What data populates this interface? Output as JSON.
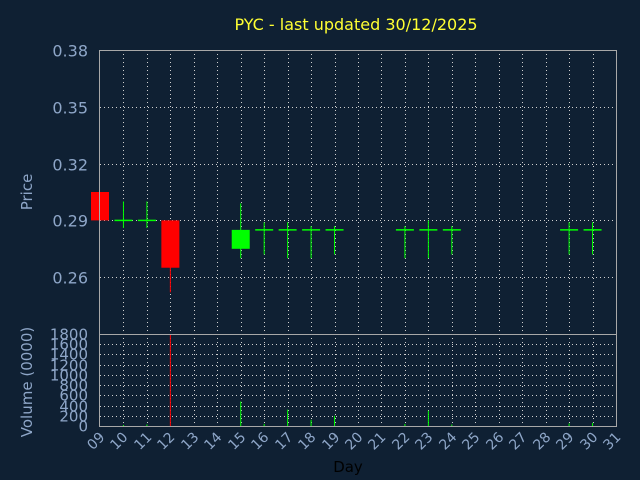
{
  "chart_data": [
    {
      "type": "candlestick",
      "title": "PYC - last updated 30/12/2025",
      "ylabel": "Price",
      "ylim": [
        0.23,
        0.38
      ],
      "yticks": [
        "0.38",
        "0.35",
        "0.32",
        "0.29",
        "0.26"
      ],
      "grid": true,
      "colors": {
        "up": "#00ff00",
        "down": "#ff0000",
        "flat": "#00ff00"
      },
      "x_days": [
        "09",
        "10",
        "11",
        "12",
        "13",
        "14",
        "15",
        "16",
        "17",
        "18",
        "19",
        "20",
        "21",
        "22",
        "23",
        "24",
        "25",
        "26",
        "27",
        "28",
        "29",
        "30",
        "31"
      ],
      "candles": [
        {
          "day": "09",
          "open": 0.305,
          "high": 0.305,
          "low": 0.29,
          "close": 0.29
        },
        {
          "day": "10",
          "open": 0.29,
          "high": 0.3,
          "low": 0.286,
          "close": 0.29
        },
        {
          "day": "11",
          "open": 0.29,
          "high": 0.3,
          "low": 0.286,
          "close": 0.29
        },
        {
          "day": "12",
          "open": 0.29,
          "high": 0.29,
          "low": 0.252,
          "close": 0.265
        },
        {
          "day": "15",
          "open": 0.275,
          "high": 0.299,
          "low": 0.27,
          "close": 0.285
        },
        {
          "day": "16",
          "open": 0.285,
          "high": 0.289,
          "low": 0.272,
          "close": 0.285
        },
        {
          "day": "17",
          "open": 0.285,
          "high": 0.289,
          "low": 0.27,
          "close": 0.285
        },
        {
          "day": "18",
          "open": 0.285,
          "high": 0.287,
          "low": 0.27,
          "close": 0.285
        },
        {
          "day": "19",
          "open": 0.285,
          "high": 0.287,
          "low": 0.272,
          "close": 0.285
        },
        {
          "day": "22",
          "open": 0.285,
          "high": 0.287,
          "low": 0.27,
          "close": 0.285
        },
        {
          "day": "23",
          "open": 0.285,
          "high": 0.29,
          "low": 0.27,
          "close": 0.285
        },
        {
          "day": "24",
          "open": 0.285,
          "high": 0.287,
          "low": 0.272,
          "close": 0.285
        },
        {
          "day": "29",
          "open": 0.285,
          "high": 0.289,
          "low": 0.272,
          "close": 0.285
        },
        {
          "day": "30",
          "open": 0.285,
          "high": 0.289,
          "low": 0.272,
          "close": 0.285
        }
      ]
    },
    {
      "type": "bar",
      "ylabel": "Volume (0000)",
      "xlabel": "Day",
      "ylim": [
        0,
        1800
      ],
      "yticks": [
        "1800",
        "1600",
        "1400",
        "1200",
        "1000",
        "800",
        "600",
        "400",
        "200",
        "0"
      ],
      "grid": true,
      "volumes": [
        {
          "day": "09",
          "value": 0,
          "color": "#ff0000"
        },
        {
          "day": "10",
          "value": 20,
          "color": "#00ff00"
        },
        {
          "day": "11",
          "value": 30,
          "color": "#00ff00"
        },
        {
          "day": "12",
          "value": 1800,
          "color": "#ff0000"
        },
        {
          "day": "15",
          "value": 480,
          "color": "#00ff00"
        },
        {
          "day": "16",
          "value": 40,
          "color": "#00ff00"
        },
        {
          "day": "17",
          "value": 320,
          "color": "#00ff00"
        },
        {
          "day": "18",
          "value": 120,
          "color": "#00ff00"
        },
        {
          "day": "19",
          "value": 200,
          "color": "#00ff00"
        },
        {
          "day": "22",
          "value": 40,
          "color": "#00ff00"
        },
        {
          "day": "23",
          "value": 300,
          "color": "#00ff00"
        },
        {
          "day": "24",
          "value": 30,
          "color": "#00ff00"
        },
        {
          "day": "29",
          "value": 50,
          "color": "#00ff00"
        },
        {
          "day": "30",
          "value": 60,
          "color": "#00ff00"
        }
      ]
    }
  ]
}
